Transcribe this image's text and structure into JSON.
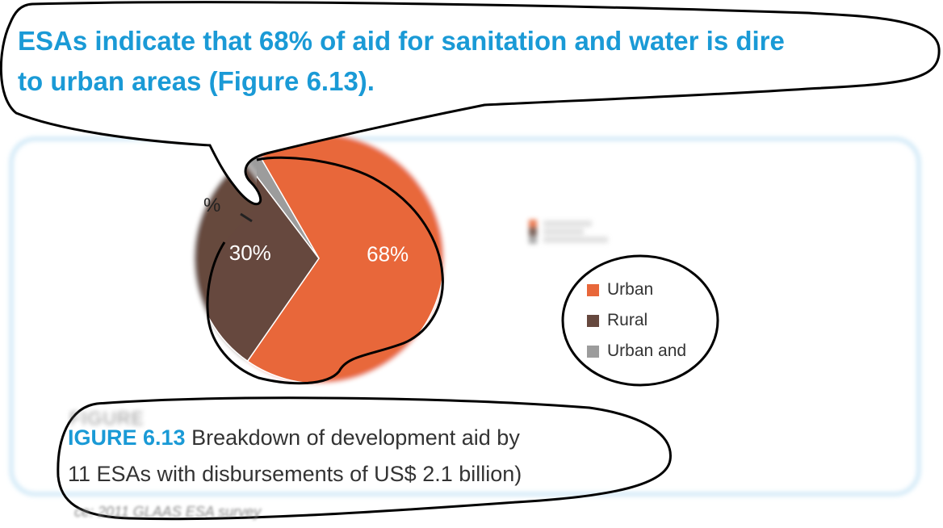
{
  "headline": {
    "line1": "ESAs indicate that 68% of aid for sanitation and water is dire",
    "line2": "to urban areas (Figure 6.13)."
  },
  "chart_data": {
    "type": "pie",
    "categories": [
      "Urban",
      "Rural",
      "Urban and"
    ],
    "values": [
      68,
      30,
      2
    ],
    "data_labels": [
      "68%",
      "30%",
      "%"
    ],
    "colors": [
      "#e8673a",
      "#66483e",
      "#9c9c9c"
    ],
    "legend_position": "right"
  },
  "legend_items": [
    "Urban",
    "Rural",
    "Urban and"
  ],
  "caption": {
    "figure_label": "IGURE 6.13",
    "text_line1": " Breakdown of development aid by",
    "text_line2": "11 ESAs with disbursements of US$ 2.1 billion)"
  },
  "source": "ce: 2011 GLAAS ESA survey",
  "colors": {
    "accent": "#1a9ad6",
    "frame": "#cfe8f7"
  }
}
